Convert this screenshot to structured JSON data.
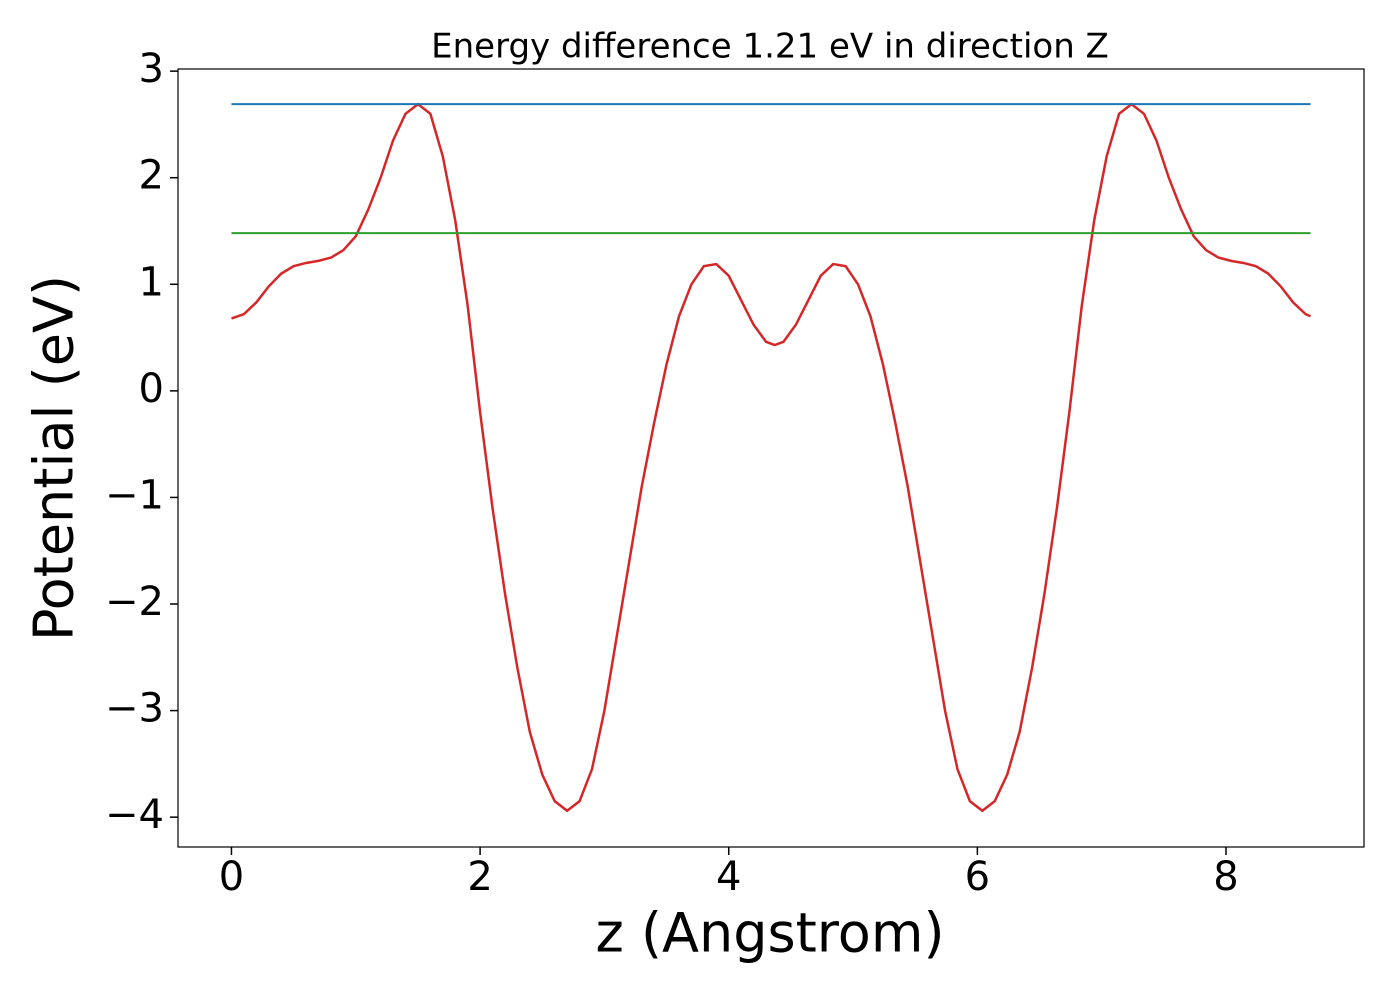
{
  "chart_data": {
    "type": "line",
    "title": "Energy difference 1.21 eV in direction Z",
    "xlabel": "z (Angstrom)",
    "ylabel": "Potential (eV)",
    "xlim": [
      -0.43,
      9.11
    ],
    "ylim": [
      -4.28,
      3.02
    ],
    "xticks": [
      0,
      2,
      4,
      6,
      8
    ],
    "yticks": [
      {
        "value": -4,
        "label": "−4"
      },
      {
        "value": -3,
        "label": "−3"
      },
      {
        "value": -2,
        "label": "−2"
      },
      {
        "value": -1,
        "label": "−1"
      },
      0,
      1,
      2,
      3
    ],
    "series": [
      {
        "name": "potential",
        "color": "#d62728",
        "x": [
          0,
          0.1,
          0.2,
          0.3,
          0.4,
          0.5,
          0.6,
          0.7,
          0.8,
          0.9,
          1.0,
          1.1,
          1.2,
          1.3,
          1.4,
          1.5,
          1.6,
          1.7,
          1.8,
          1.9,
          2.0,
          2.1,
          2.2,
          2.3,
          2.4,
          2.5,
          2.6,
          2.7,
          2.8,
          2.9,
          3.0,
          3.1,
          3.2,
          3.3,
          3.4,
          3.5,
          3.6,
          3.7,
          3.8,
          3.9,
          4.0,
          4.1,
          4.2,
          4.3,
          4.37,
          4.44,
          4.54,
          4.64,
          4.74,
          4.84,
          4.94,
          5.04,
          5.14,
          5.24,
          5.34,
          5.44,
          5.54,
          5.64,
          5.74,
          5.84,
          5.94,
          6.04,
          6.14,
          6.24,
          6.34,
          6.44,
          6.54,
          6.64,
          6.74,
          6.84,
          6.94,
          7.04,
          7.14,
          7.24,
          7.34,
          7.44,
          7.54,
          7.64,
          7.74,
          7.84,
          7.94,
          8.04,
          8.14,
          8.24,
          8.34,
          8.44,
          8.54,
          8.64,
          8.68
        ],
        "values": [
          0.68,
          0.72,
          0.83,
          0.98,
          1.1,
          1.17,
          1.2,
          1.22,
          1.25,
          1.32,
          1.45,
          1.7,
          2.0,
          2.35,
          2.6,
          2.69,
          2.6,
          2.2,
          1.6,
          0.8,
          -0.2,
          -1.1,
          -1.9,
          -2.6,
          -3.2,
          -3.6,
          -3.85,
          -3.94,
          -3.85,
          -3.55,
          -3.0,
          -2.3,
          -1.6,
          -0.9,
          -0.3,
          0.25,
          0.7,
          1.0,
          1.17,
          1.19,
          1.08,
          0.85,
          0.62,
          0.46,
          0.43,
          0.46,
          0.62,
          0.85,
          1.08,
          1.19,
          1.17,
          1.0,
          0.7,
          0.25,
          -0.3,
          -0.9,
          -1.6,
          -2.3,
          -3.0,
          -3.55,
          -3.85,
          -3.94,
          -3.85,
          -3.6,
          -3.2,
          -2.6,
          -1.9,
          -1.1,
          -0.2,
          0.8,
          1.6,
          2.2,
          2.6,
          2.69,
          2.6,
          2.35,
          2.0,
          1.7,
          1.45,
          1.32,
          1.25,
          1.22,
          1.2,
          1.17,
          1.1,
          0.98,
          0.83,
          0.72,
          0.7
        ]
      },
      {
        "name": "upper level",
        "color": "#1f77b4",
        "x": [
          0,
          8.68
        ],
        "values": [
          2.69,
          2.69
        ]
      },
      {
        "name": "lower level",
        "color": "#2ca02c",
        "x": [
          0,
          8.68
        ],
        "values": [
          1.48,
          1.48
        ]
      }
    ]
  }
}
